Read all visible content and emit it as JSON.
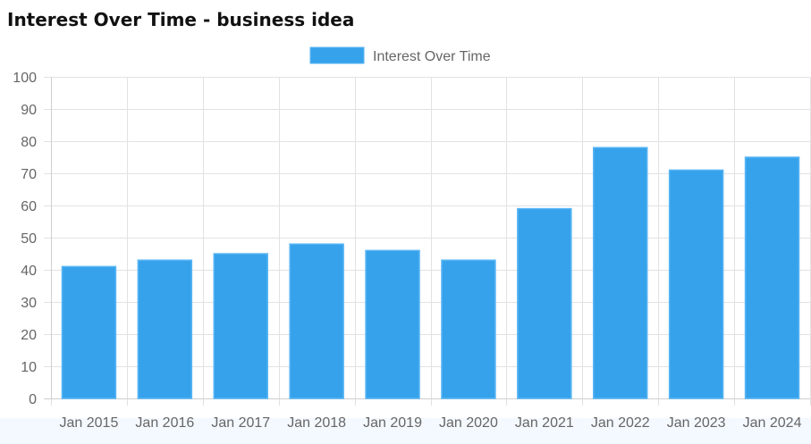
{
  "title": "Interest Over Time - business idea",
  "colors": {
    "bar_fill": "#36a2eb",
    "bar_stroke": "#5ab6f5",
    "grid": "#e2e2e2",
    "axis_text": "#666666"
  },
  "chart_data": {
    "type": "bar",
    "categories": [
      "Jan 2015",
      "Jan 2016",
      "Jan 2017",
      "Jan 2018",
      "Jan 2019",
      "Jan 2020",
      "Jan 2021",
      "Jan 2022",
      "Jan 2023",
      "Jan 2024"
    ],
    "series": [
      {
        "name": "Interest Over Time",
        "values": [
          41,
          43,
          45,
          48,
          46,
          43,
          59,
          78,
          71,
          75
        ]
      }
    ],
    "ylim": [
      0,
      100
    ],
    "yticks": [
      0,
      10,
      20,
      30,
      40,
      50,
      60,
      70,
      80,
      90,
      100
    ],
    "grid": true,
    "legend_position": "top-center"
  }
}
